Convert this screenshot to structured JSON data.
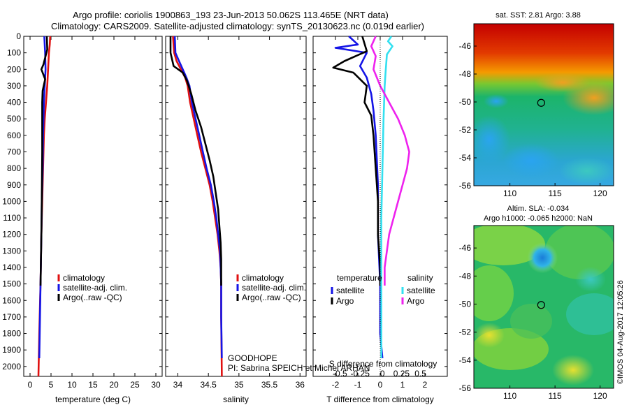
{
  "header": {
    "line1": "Argo profile: coriolis 1900863_193 23-Jun-2013 50.062S 113.465E (NRT data)",
    "line2": "Climatology: CARS2009. Satellite-adjusted climatology: synTS_20130623.nc (0.019d earlier)"
  },
  "colors": {
    "climatology": "#e01010",
    "satellite": "#1414e6",
    "argo": "#000000",
    "satellite_salinity": "#33e0f0",
    "argo_salinity": "#ee22ee"
  },
  "chart_data": [
    {
      "id": "temperature",
      "type": "line",
      "xlabel": "temperature (deg C)",
      "xticks": [
        0,
        5,
        10,
        15,
        20,
        25,
        30
      ],
      "xlim": [
        -1.5,
        31.5
      ],
      "ylim": [
        2060,
        0
      ],
      "yticks": [
        0,
        100,
        200,
        300,
        400,
        500,
        600,
        700,
        800,
        900,
        1000,
        1100,
        1200,
        1300,
        1400,
        1500,
        1600,
        1700,
        1800,
        1900,
        2000
      ],
      "legend": [
        "climatology",
        "satellite-adj. clim.",
        "Argo(..raw -QC)"
      ],
      "series": [
        {
          "name": "climatology",
          "color_key": "climatology",
          "points": [
            [
              4.8,
              0
            ],
            [
              4.7,
              50
            ],
            [
              4.5,
              100
            ],
            [
              4.3,
              200
            ],
            [
              4.1,
              300
            ],
            [
              3.8,
              400
            ],
            [
              3.5,
              500
            ],
            [
              3.3,
              600
            ],
            [
              3.1,
              800
            ],
            [
              2.9,
              1000
            ],
            [
              2.7,
              1200
            ],
            [
              2.5,
              1500
            ],
            [
              2.2,
              1800
            ],
            [
              2.0,
              2060
            ]
          ]
        },
        {
          "name": "satellite-adj. clim.",
          "color_key": "satellite",
          "points": [
            [
              3.4,
              0
            ],
            [
              3.5,
              50
            ],
            [
              3.6,
              100
            ],
            [
              3.7,
              200
            ],
            [
              3.5,
              300
            ],
            [
              3.3,
              400
            ],
            [
              3.2,
              500
            ],
            [
              3.1,
              600
            ],
            [
              3.0,
              800
            ],
            [
              2.8,
              1000
            ],
            [
              2.7,
              1200
            ],
            [
              2.5,
              1500
            ],
            [
              2.3,
              1800
            ],
            [
              2.2,
              1950
            ]
          ]
        },
        {
          "name": "Argo(..raw -QC)",
          "color_key": "argo",
          "points": [
            [
              4.0,
              0
            ],
            [
              4.1,
              80
            ],
            [
              3.2,
              170
            ],
            [
              2.7,
              200
            ],
            [
              3.6,
              260
            ],
            [
              3.0,
              330
            ],
            [
              2.9,
              400
            ],
            [
              2.9,
              500
            ],
            [
              2.9,
              700
            ],
            [
              2.8,
              1000
            ],
            [
              2.7,
              1200
            ],
            [
              2.5,
              1510
            ]
          ]
        }
      ]
    },
    {
      "id": "salinity",
      "type": "line",
      "xlabel": "salinity",
      "xticks": [
        34,
        34.5,
        35,
        35.5,
        36
      ],
      "xlim": [
        33.8,
        36.1
      ],
      "ylim": [
        2060,
        0
      ],
      "legend": [
        "climatology",
        "satellite-adj. clim.",
        "Argo(..raw -QC)"
      ],
      "annotation": [
        "GOODHOPE",
        "PI: Sabrina SPEICH et Michel ARHAN"
      ],
      "series": [
        {
          "name": "climatology",
          "color_key": "climatology",
          "points": [
            [
              33.92,
              0
            ],
            [
              33.94,
              100
            ],
            [
              33.98,
              150
            ],
            [
              34.05,
              200
            ],
            [
              34.12,
              250
            ],
            [
              34.16,
              300
            ],
            [
              34.2,
              400
            ],
            [
              34.26,
              500
            ],
            [
              34.32,
              600
            ],
            [
              34.38,
              700
            ],
            [
              34.45,
              800
            ],
            [
              34.52,
              900
            ],
            [
              34.57,
              1000
            ],
            [
              34.61,
              1100
            ],
            [
              34.65,
              1200
            ],
            [
              34.68,
              1300
            ],
            [
              34.7,
              1400
            ],
            [
              34.71,
              1500
            ],
            [
              34.71,
              1700
            ],
            [
              34.72,
              2060
            ]
          ]
        },
        {
          "name": "satellite-adj. clim.",
          "color_key": "satellite",
          "points": [
            [
              33.95,
              0
            ],
            [
              33.96,
              100
            ],
            [
              34.02,
              150
            ],
            [
              34.08,
              200
            ],
            [
              34.14,
              250
            ],
            [
              34.19,
              300
            ],
            [
              34.23,
              400
            ],
            [
              34.29,
              500
            ],
            [
              34.35,
              600
            ],
            [
              34.41,
              700
            ],
            [
              34.47,
              800
            ],
            [
              34.54,
              900
            ],
            [
              34.59,
              1000
            ],
            [
              34.63,
              1100
            ],
            [
              34.66,
              1200
            ],
            [
              34.69,
              1300
            ],
            [
              34.7,
              1400
            ],
            [
              34.71,
              1500
            ],
            [
              34.71,
              1700
            ],
            [
              34.72,
              1950
            ]
          ]
        },
        {
          "name": "Argo(..raw -QC)",
          "color_key": "argo",
          "points": [
            [
              33.88,
              0
            ],
            [
              33.88,
              100
            ],
            [
              33.93,
              180
            ],
            [
              34.08,
              220
            ],
            [
              34.15,
              270
            ],
            [
              34.22,
              350
            ],
            [
              34.29,
              450
            ],
            [
              34.38,
              550
            ],
            [
              34.45,
              650
            ],
            [
              34.52,
              750
            ],
            [
              34.58,
              850
            ],
            [
              34.62,
              950
            ],
            [
              34.66,
              1050
            ],
            [
              34.68,
              1150
            ],
            [
              34.7,
              1250
            ],
            [
              34.71,
              1350
            ],
            [
              34.71,
              1510
            ]
          ]
        }
      ]
    },
    {
      "id": "difference",
      "type": "line",
      "xlabel": "T difference from climatology",
      "xlabel_top": "S difference from climatology",
      "xticks": [
        -2,
        -1,
        0,
        1,
        2
      ],
      "xticks_top": [
        "-0.5",
        "-0.25",
        "0",
        "0.25",
        "0.5"
      ],
      "xticks_top_pos": [
        -1.8,
        -0.9,
        0.1,
        0.95,
        1.8
      ],
      "xlim": [
        -3.0,
        3.0
      ],
      "ylim": [
        2060,
        0
      ],
      "legend": {
        "temperature_title": "temperature",
        "salinity_title": "salinity",
        "temperature_items": [
          "satellite",
          "Argo"
        ],
        "salinity_items": [
          "satellite",
          "Argo"
        ]
      },
      "series": [
        {
          "name": "T satellite",
          "color_key": "satellite",
          "points": [
            [
              -1.4,
              0
            ],
            [
              -1.0,
              50
            ],
            [
              -2.0,
              70
            ],
            [
              -0.6,
              100
            ],
            [
              -0.9,
              180
            ],
            [
              -0.6,
              250
            ],
            [
              -0.4,
              350
            ],
            [
              -0.3,
              450
            ],
            [
              -0.2,
              600
            ],
            [
              -0.1,
              900
            ],
            [
              -0.1,
              1200
            ],
            [
              0,
              1500
            ],
            [
              0,
              1800
            ],
            [
              0.1,
              1950
            ]
          ]
        },
        {
          "name": "T Argo",
          "color_key": "argo",
          "points": [
            [
              -0.8,
              0
            ],
            [
              -0.6,
              90
            ],
            [
              -1.6,
              150
            ],
            [
              -2.1,
              190
            ],
            [
              -1.2,
              220
            ],
            [
              -0.6,
              300
            ],
            [
              -0.7,
              400
            ],
            [
              -0.4,
              480
            ],
            [
              -0.3,
              600
            ],
            [
              -0.2,
              800
            ],
            [
              -0.1,
              1000
            ],
            [
              -0.1,
              1200
            ],
            [
              0,
              1400
            ],
            [
              0,
              1510
            ]
          ]
        },
        {
          "name": "S satellite",
          "color_key": "satellite_salinity",
          "points": [
            [
              0.5,
              0
            ],
            [
              0.35,
              30
            ],
            [
              0.55,
              60
            ],
            [
              0.3,
              110
            ],
            [
              0.25,
              200
            ],
            [
              0.2,
              300
            ],
            [
              0.15,
              500
            ],
            [
              0.1,
              800
            ],
            [
              0.05,
              1100
            ],
            [
              0.05,
              1400
            ],
            [
              0.05,
              1700
            ],
            [
              0.05,
              1950
            ]
          ]
        },
        {
          "name": "S Argo",
          "color_key": "argo_salinity",
          "points": [
            [
              -0.2,
              0
            ],
            [
              -0.4,
              60
            ],
            [
              -0.2,
              120
            ],
            [
              -0.3,
              200
            ],
            [
              0,
              300
            ],
            [
              0.4,
              400
            ],
            [
              0.8,
              500
            ],
            [
              1.1,
              600
            ],
            [
              1.3,
              700
            ],
            [
              1.2,
              800
            ],
            [
              1.0,
              900
            ],
            [
              0.8,
              1000
            ],
            [
              0.6,
              1100
            ],
            [
              0.4,
              1200
            ],
            [
              0.3,
              1300
            ],
            [
              0.2,
              1400
            ],
            [
              0.2,
              1510
            ]
          ]
        }
      ]
    },
    {
      "id": "sst_map",
      "type": "heatmap",
      "title": "sat. SST: 2.81 Argo: 3.88",
      "xticks": [
        110,
        115,
        120
      ],
      "yticks": [
        -46,
        -48,
        -50,
        -52,
        -54,
        -56
      ],
      "xlim": [
        106,
        121.5
      ],
      "ylim": [
        -56,
        -44.4
      ],
      "marker": [
        113.465,
        -50.062
      ]
    },
    {
      "id": "sla_map",
      "type": "heatmap",
      "title": [
        "Altim. SLA: -0.034",
        "Argo h1000: -0.065 h2000: NaN"
      ],
      "xticks": [
        110,
        115,
        120
      ],
      "yticks": [
        -46,
        -48,
        -50,
        -52,
        -54,
        -56
      ],
      "xlim": [
        106,
        121.5
      ],
      "ylim": [
        -56,
        -44.4
      ],
      "marker": [
        113.465,
        -50.062
      ],
      "eddy_center": [
        113.6,
        -46.7
      ]
    }
  ],
  "footer": {
    "stamp": "©IMOS 04-Aug-2017 12:05:26"
  }
}
